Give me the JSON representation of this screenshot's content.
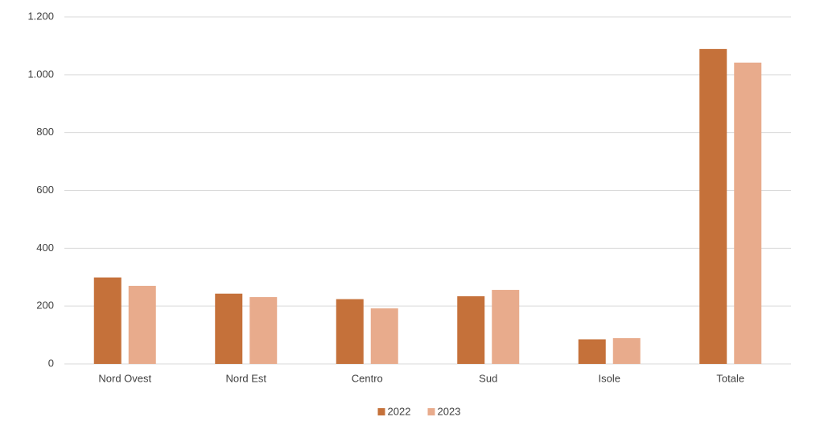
{
  "chart_data": {
    "type": "bar",
    "categories": [
      "Nord Ovest",
      "Nord Est",
      "Centro",
      "Sud",
      "Isole",
      "Totale"
    ],
    "series": [
      {
        "name": "2022",
        "color": "#c5713a",
        "values": [
          299,
          243,
          224,
          234,
          85,
          1089
        ]
      },
      {
        "name": "2023",
        "color": "#e8ab8c",
        "values": [
          270,
          231,
          192,
          256,
          89,
          1042
        ]
      }
    ],
    "ylim": [
      0,
      1200
    ],
    "yticks": [
      0,
      200,
      400,
      600,
      800,
      {
        "value": 1000,
        "label": "1.000"
      },
      {
        "value": 1200,
        "label": "1.200"
      }
    ],
    "grid": true,
    "legend": "bottom"
  }
}
